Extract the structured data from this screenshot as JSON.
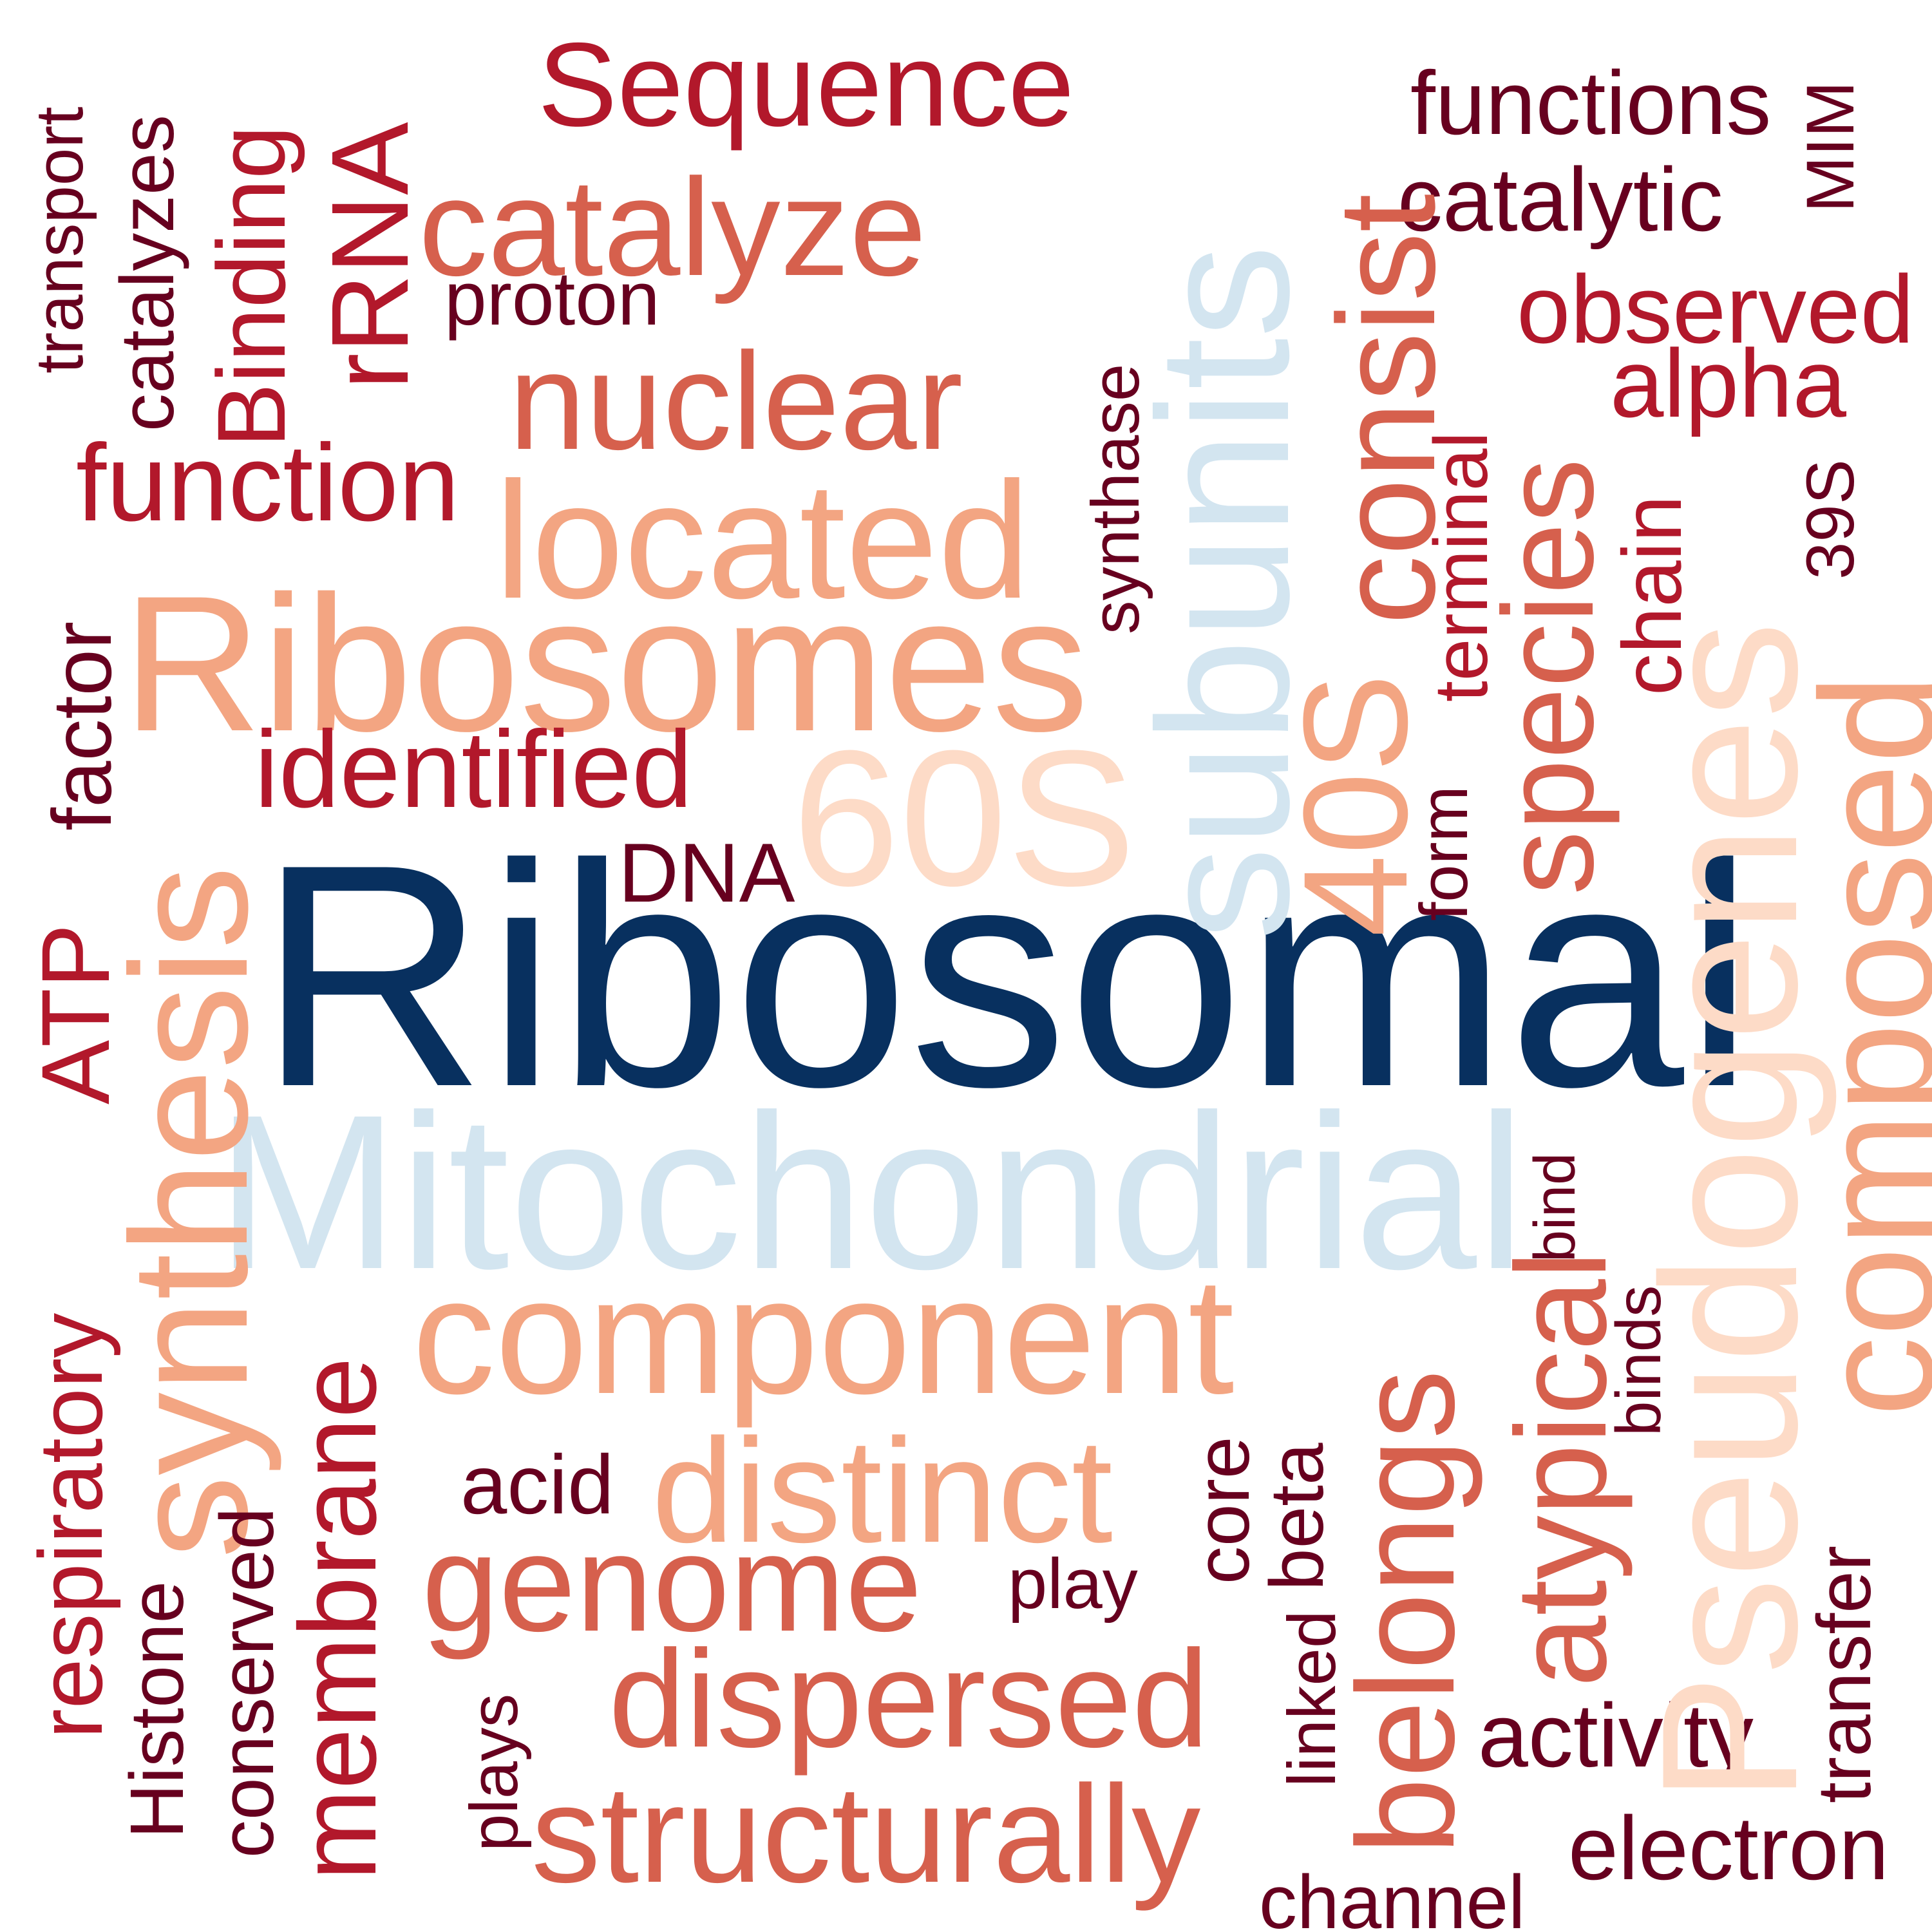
{
  "palette": {
    "navy": "#08305f",
    "lightblue": "#d3e5f0",
    "peach": "#fddbc7",
    "salmon": "#f3a582",
    "coral": "#d6604d",
    "red": "#b2182b",
    "darkred": "#67001f"
  },
  "words": [
    {
      "id": "ribosomal",
      "text": "Ribosomal",
      "color": "navy"
    },
    {
      "id": "mitochondrial",
      "text": "Mitochondrial",
      "color": "lightblue"
    },
    {
      "id": "subunits",
      "text": "subunits",
      "color": "lightblue"
    },
    {
      "id": "pseudogenes",
      "text": "Pseudogenes",
      "color": "peach"
    },
    {
      "id": "60s",
      "text": "60S",
      "color": "peach"
    },
    {
      "id": "ribosomes",
      "text": "Ribosomes",
      "color": "salmon"
    },
    {
      "id": "located",
      "text": "located",
      "color": "salmon"
    },
    {
      "id": "component",
      "text": "component",
      "color": "salmon"
    },
    {
      "id": "synthesis",
      "text": "synthesis",
      "color": "salmon"
    },
    {
      "id": "composed",
      "text": "composed",
      "color": "salmon"
    },
    {
      "id": "distinct",
      "text": "distinct",
      "color": "salmon"
    },
    {
      "id": "40s",
      "text": "40S",
      "color": "salmon"
    },
    {
      "id": "consist",
      "text": "consist",
      "color": "coral"
    },
    {
      "id": "species",
      "text": "species",
      "color": "coral"
    },
    {
      "id": "catalyze",
      "text": "catalyze",
      "color": "coral"
    },
    {
      "id": "nuclear",
      "text": "nuclear",
      "color": "coral"
    },
    {
      "id": "genome",
      "text": "genome",
      "color": "coral"
    },
    {
      "id": "dispersed",
      "text": "dispersed",
      "color": "coral"
    },
    {
      "id": "structurally",
      "text": "structurally",
      "color": "coral"
    },
    {
      "id": "belongs",
      "text": "belongs",
      "color": "coral"
    },
    {
      "id": "atypical",
      "text": "atypical",
      "color": "coral"
    },
    {
      "id": "sequence",
      "text": "Sequence",
      "color": "red"
    },
    {
      "id": "function",
      "text": "function",
      "color": "red"
    },
    {
      "id": "identified",
      "text": "identified",
      "color": "red"
    },
    {
      "id": "rrna",
      "text": "rRNA",
      "color": "red"
    },
    {
      "id": "binding",
      "text": "Binding",
      "color": "red"
    },
    {
      "id": "atp",
      "text": "ATP",
      "color": "red"
    },
    {
      "id": "membrane",
      "text": "membrane",
      "color": "red"
    },
    {
      "id": "respiratory",
      "text": "respiratory",
      "color": "red"
    },
    {
      "id": "observed",
      "text": "observed",
      "color": "red"
    },
    {
      "id": "alpha",
      "text": "alpha",
      "color": "red"
    },
    {
      "id": "chain",
      "text": "chain",
      "color": "red"
    },
    {
      "id": "terminal",
      "text": "terminal",
      "color": "red"
    },
    {
      "id": "functions",
      "text": "functions",
      "color": "darkred"
    },
    {
      "id": "catalytic",
      "text": "catalytic",
      "color": "darkred"
    },
    {
      "id": "mim",
      "text": "MIM",
      "color": "darkred"
    },
    {
      "id": "39s",
      "text": "39S",
      "color": "darkred"
    },
    {
      "id": "proton",
      "text": "proton",
      "color": "darkred"
    },
    {
      "id": "transport",
      "text": "transport",
      "color": "darkred"
    },
    {
      "id": "catalyzes",
      "text": "catalyzes",
      "color": "darkred"
    },
    {
      "id": "factor",
      "text": "factor",
      "color": "darkred"
    },
    {
      "id": "synthase",
      "text": "synthase",
      "color": "darkred"
    },
    {
      "id": "dna",
      "text": "DNA",
      "color": "darkred"
    },
    {
      "id": "form",
      "text": "form",
      "color": "darkred"
    },
    {
      "id": "bind",
      "text": "bind",
      "color": "darkred"
    },
    {
      "id": "binds",
      "text": "binds",
      "color": "darkred"
    },
    {
      "id": "core",
      "text": "core",
      "color": "darkred"
    },
    {
      "id": "beta",
      "text": "beta",
      "color": "darkred"
    },
    {
      "id": "linked",
      "text": "linked",
      "color": "darkred"
    },
    {
      "id": "acid",
      "text": "acid",
      "color": "darkred"
    },
    {
      "id": "play",
      "text": "play",
      "color": "darkred"
    },
    {
      "id": "plays",
      "text": "plays",
      "color": "darkred"
    },
    {
      "id": "conserved",
      "text": "conserved",
      "color": "darkred"
    },
    {
      "id": "histone",
      "text": "Histone",
      "color": "darkred"
    },
    {
      "id": "activity",
      "text": "activity",
      "color": "darkred"
    },
    {
      "id": "transfer",
      "text": "transfer",
      "color": "darkred"
    },
    {
      "id": "electron",
      "text": "electron",
      "color": "darkred"
    },
    {
      "id": "channel",
      "text": "channel",
      "color": "darkred"
    }
  ]
}
